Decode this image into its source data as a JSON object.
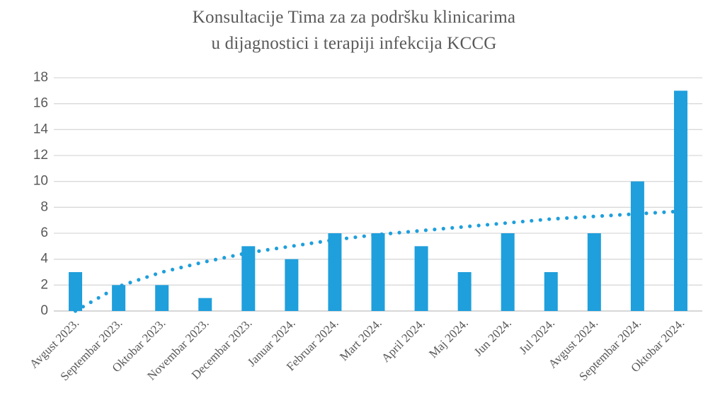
{
  "chart_data": {
    "type": "bar",
    "title": "Konsultacije Tima za za podršku klinicarima",
    "subtitle": "u dijagnostici i terapiji infekcija  KCCG",
    "xlabel": "",
    "ylabel": "",
    "ylim": [
      0,
      18
    ],
    "yticks": [
      0,
      2,
      4,
      6,
      8,
      10,
      12,
      14,
      16,
      18
    ],
    "grid": true,
    "legend": "none",
    "categories": [
      "Avgust 2023.",
      "Septembar 2023.",
      "Oktobar 2023.",
      "Novembar 2023.",
      "Decembar 2023.",
      "Januar 2024.",
      "Februar 2024.",
      "Mart 2024.",
      "April 2024.",
      "Maj 2024.",
      "Jun 2024.",
      "Jul 2024.",
      "Avgust 2024.",
      "Septembar 2024.",
      "Oktobar 2024."
    ],
    "values": [
      3,
      2,
      2,
      1,
      5,
      4,
      6,
      6,
      5,
      3,
      6,
      3,
      6,
      10,
      17
    ],
    "trendline": {
      "type": "logarithmic",
      "style": "dotted",
      "values": [
        0.0,
        1.9,
        3.0,
        3.8,
        4.5,
        5.0,
        5.5,
        5.9,
        6.2,
        6.5,
        6.8,
        7.1,
        7.3,
        7.5,
        7.7
      ]
    },
    "colors": {
      "bar": "#1f9fdc",
      "trend": "#1f9fdc",
      "grid": "#d9d9d9",
      "text": "#595959"
    }
  }
}
